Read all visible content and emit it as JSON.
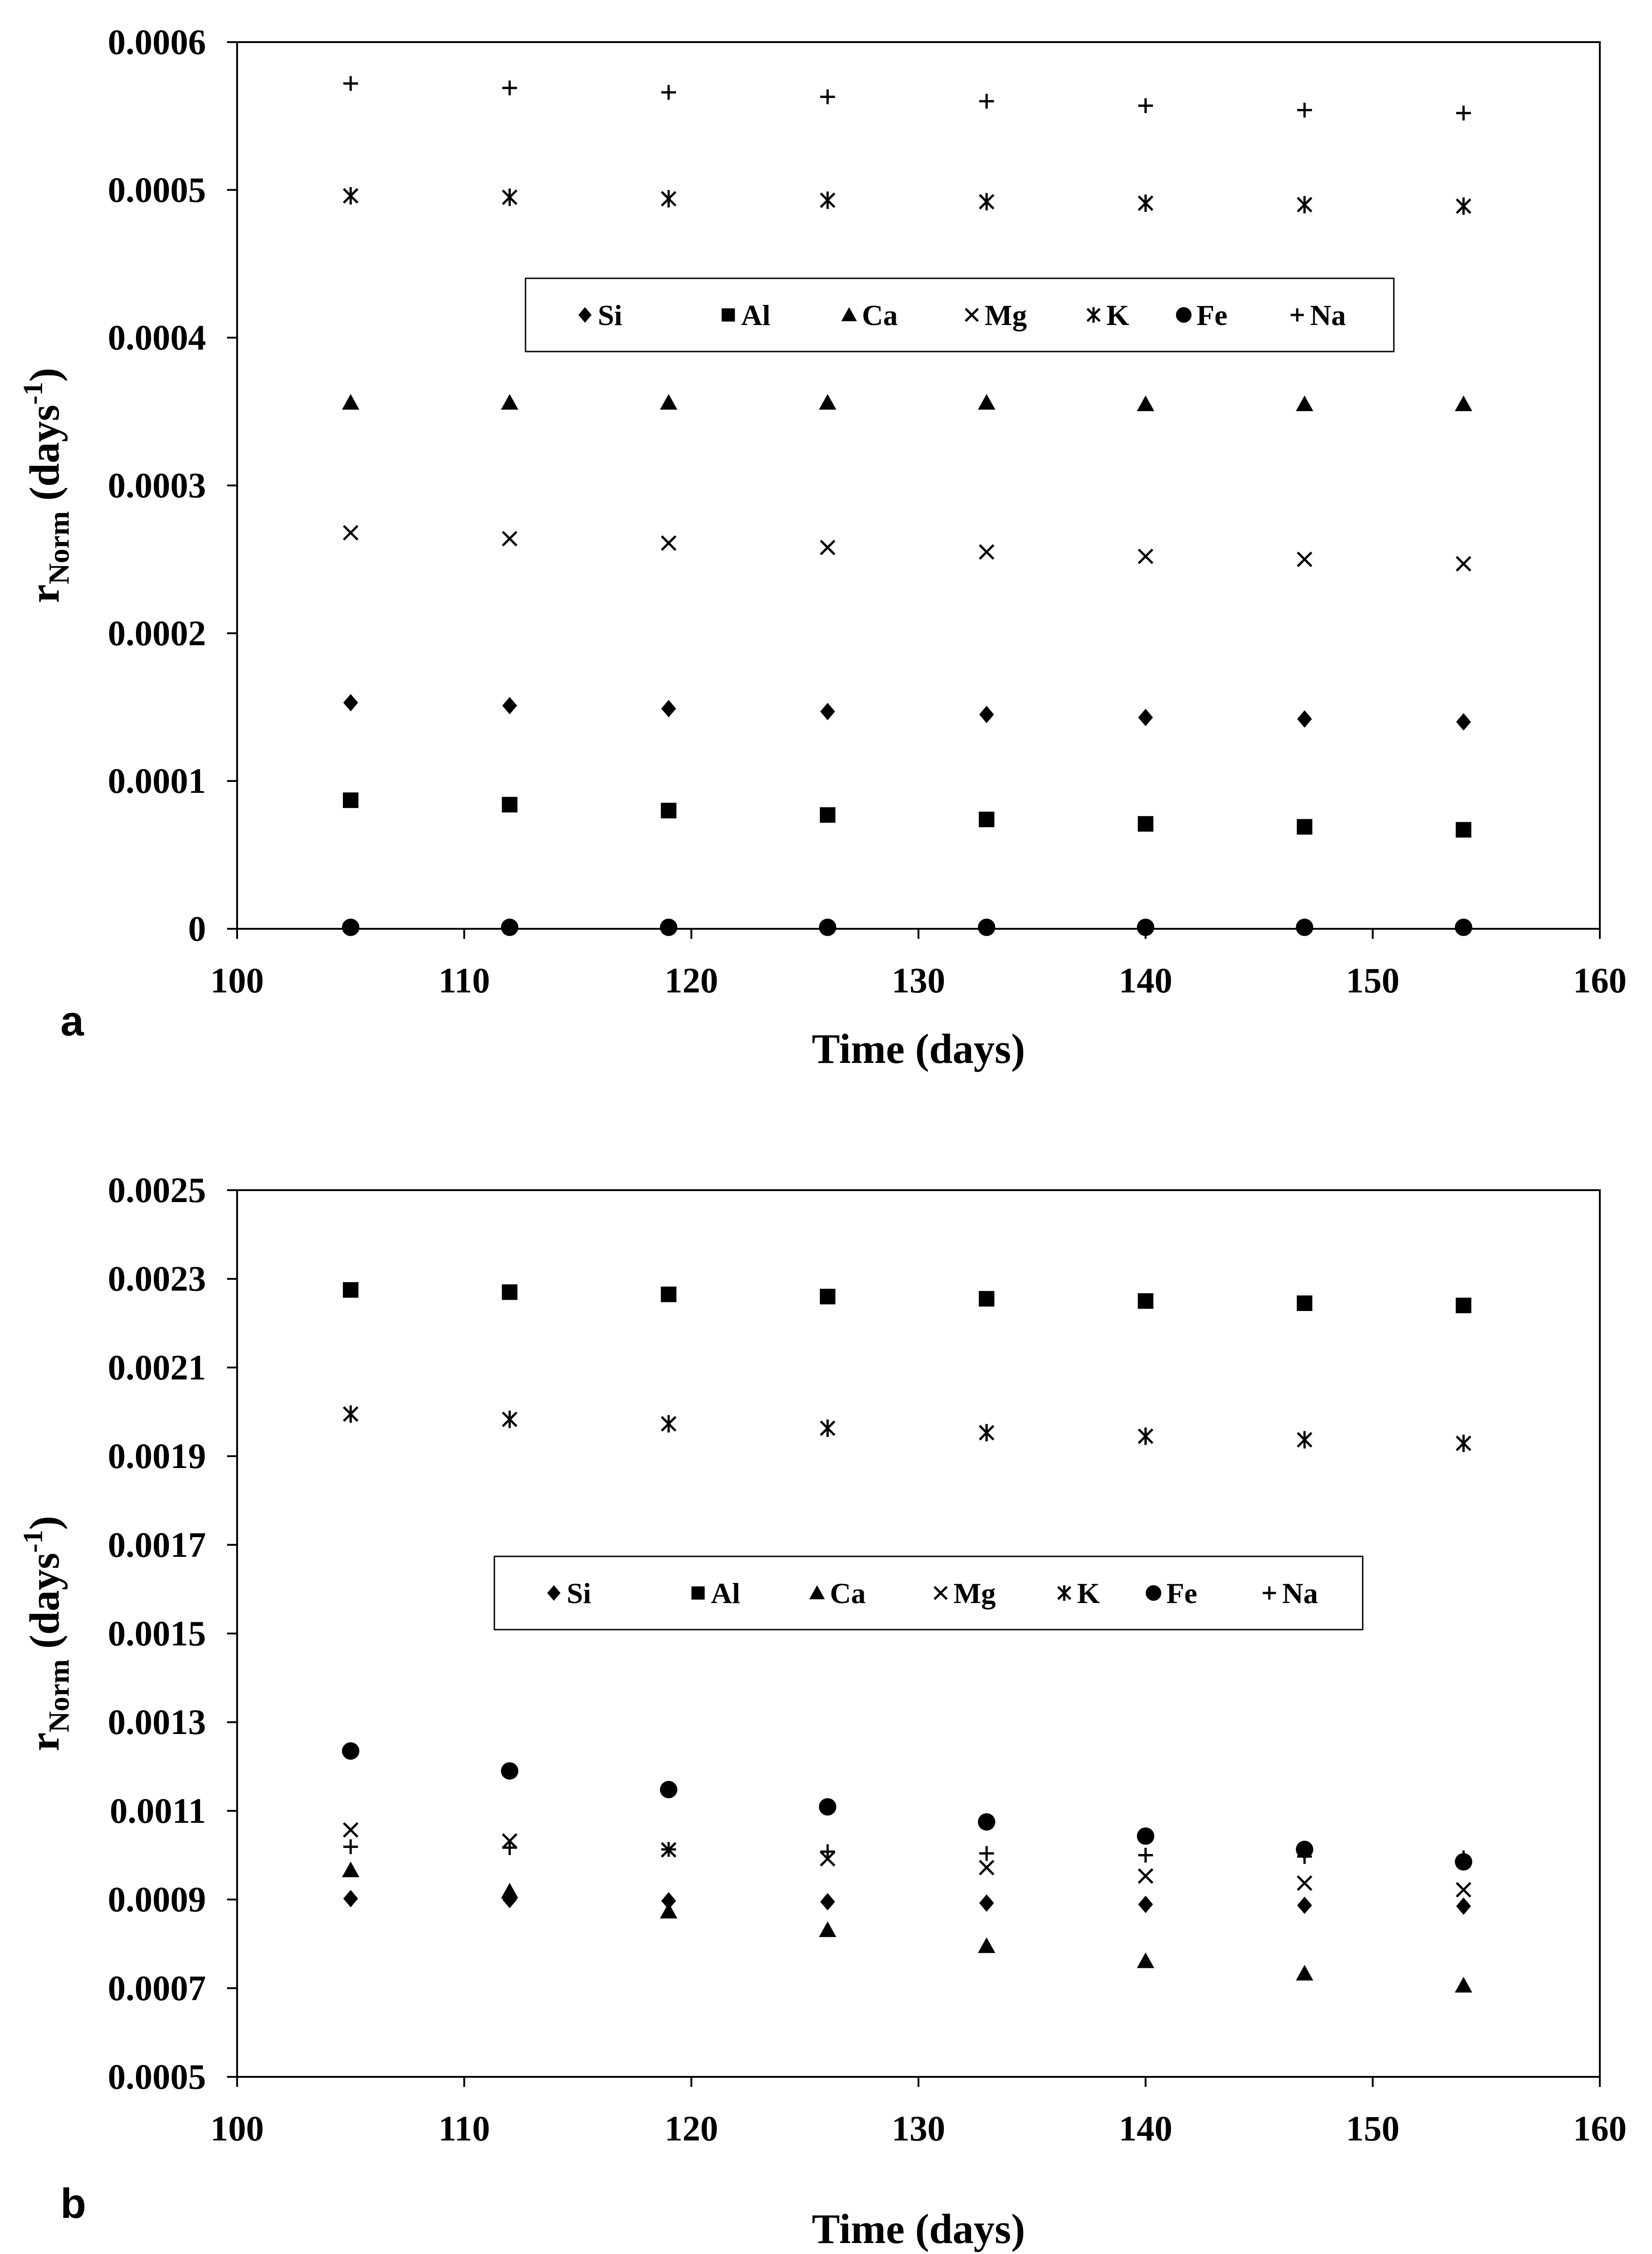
{
  "chart_data": [
    {
      "panel_label": "a",
      "type": "scatter",
      "xlabel": "Time (days)",
      "ylabel": {
        "base": "r",
        "sub": "Norm",
        "unit_open": " (days",
        "sup": "-1",
        "unit_close": ")"
      },
      "xlim": [
        100,
        160
      ],
      "ylim": [
        0,
        0.0006
      ],
      "xticks": [
        100,
        110,
        120,
        130,
        140,
        150,
        160
      ],
      "yticks": [
        0,
        0.0001,
        0.0002,
        0.0003,
        0.0004,
        0.0005,
        0.0006
      ],
      "ytick_labels": [
        "0",
        "0.0001",
        "0.0002",
        "0.0003",
        "0.0004",
        "0.0005",
        "0.0006"
      ],
      "grid": false,
      "legend_placement": "top-center",
      "x": [
        105,
        112,
        119,
        126,
        133,
        140,
        147,
        154
      ],
      "series": [
        {
          "name": "Si",
          "marker": "diamond",
          "values": [
            0.000153,
            0.000151,
            0.000149,
            0.000147,
            0.000145,
            0.000143,
            0.000142,
            0.00014
          ]
        },
        {
          "name": "Al",
          "marker": "square",
          "values": [
            8.7e-05,
            8.4e-05,
            8e-05,
            7.7e-05,
            7.4e-05,
            7.1e-05,
            6.9e-05,
            6.7e-05
          ]
        },
        {
          "name": "Ca",
          "marker": "triangle",
          "values": [
            0.000356,
            0.000356,
            0.000356,
            0.000356,
            0.000356,
            0.000355,
            0.000355,
            0.000355
          ]
        },
        {
          "name": "Mg",
          "marker": "x",
          "values": [
            0.000268,
            0.000264,
            0.000261,
            0.000258,
            0.000255,
            0.000252,
            0.00025,
            0.000247
          ]
        },
        {
          "name": "K",
          "marker": "asterisk",
          "values": [
            0.000496,
            0.000495,
            0.000494,
            0.000493,
            0.000492,
            0.000491,
            0.00049,
            0.000489
          ]
        },
        {
          "name": "Fe",
          "marker": "circle",
          "values": [
            1e-06,
            1e-06,
            1e-06,
            1e-06,
            1e-06,
            1e-06,
            1e-06,
            1e-06
          ]
        },
        {
          "name": "Na",
          "marker": "plus",
          "values": [
            0.000572,
            0.000569,
            0.000566,
            0.000563,
            0.00056,
            0.000557,
            0.000554,
            0.000552
          ]
        }
      ]
    },
    {
      "panel_label": "b",
      "type": "scatter",
      "xlabel": "Time (days)",
      "ylabel": {
        "base": "r",
        "sub": "Norm",
        "unit_open": " (days",
        "sup": "-1",
        "unit_close": ")"
      },
      "xlim": [
        100,
        160
      ],
      "ylim": [
        0.0005,
        0.0025
      ],
      "xticks": [
        100,
        110,
        120,
        130,
        140,
        150,
        160
      ],
      "yticks": [
        0.0005,
        0.0007,
        0.0009,
        0.0011,
        0.0013,
        0.0015,
        0.0017,
        0.0019,
        0.0021,
        0.0023,
        0.0025
      ],
      "ytick_labels": [
        "0.0005",
        "0.0007",
        "0.0009",
        "0.0011",
        "0.0013",
        "0.0015",
        "0.0017",
        "0.0019",
        "0.0021",
        "0.0023",
        "0.0025"
      ],
      "grid": false,
      "legend_placement": "center",
      "x": [
        105,
        112,
        119,
        126,
        133,
        140,
        147,
        154
      ],
      "series": [
        {
          "name": "Si",
          "marker": "diamond",
          "values": [
            0.000902,
            0.0009,
            0.000897,
            0.000895,
            0.000892,
            0.000889,
            0.000887,
            0.000885
          ]
        },
        {
          "name": "Al",
          "marker": "square",
          "values": [
            0.002275,
            0.00227,
            0.002265,
            0.00226,
            0.002255,
            0.00225,
            0.002245,
            0.00224
          ]
        },
        {
          "name": "Ca",
          "marker": "triangle",
          "values": [
            0.000966,
            0.000918,
            0.000873,
            0.000831,
            0.000795,
            0.000761,
            0.000733,
            0.000706
          ]
        },
        {
          "name": "Mg",
          "marker": "x",
          "values": [
            0.001057,
            0.001032,
            0.001012,
            0.000992,
            0.000972,
            0.000953,
            0.000937,
            0.000922
          ]
        },
        {
          "name": "K",
          "marker": "asterisk",
          "values": [
            0.001995,
            0.001983,
            0.001973,
            0.001963,
            0.001953,
            0.001945,
            0.001937,
            0.001929
          ]
        },
        {
          "name": "Fe",
          "marker": "circle",
          "values": [
            0.001235,
            0.00119,
            0.001148,
            0.001109,
            0.001075,
            0.001043,
            0.001013,
            0.000985
          ]
        },
        {
          "name": "Na",
          "marker": "plus",
          "values": [
            0.001019,
            0.001017,
            0.001013,
            0.001008,
            0.001004,
            0.001,
            0.000997,
            0.000994
          ]
        }
      ]
    }
  ]
}
